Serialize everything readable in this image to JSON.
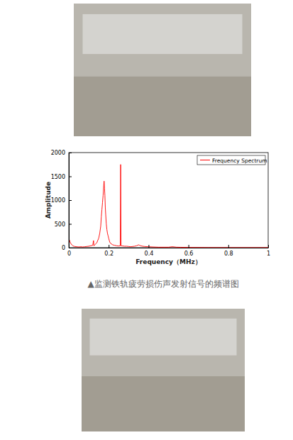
{
  "chart_data": {
    "type": "line",
    "xlabel": "Frequency（MHz）",
    "ylabel": "Amplitude",
    "x": [
      0,
      0.003,
      0.006,
      0.01,
      0.015,
      0.02,
      0.025,
      0.03,
      0.04,
      0.05,
      0.06,
      0.07,
      0.08,
      0.09,
      0.1,
      0.11,
      0.12,
      0.124,
      0.126,
      0.13,
      0.14,
      0.145,
      0.15,
      0.155,
      0.16,
      0.163,
      0.166,
      0.169,
      0.172,
      0.175,
      0.177,
      0.179,
      0.181,
      0.183,
      0.185,
      0.188,
      0.191,
      0.194,
      0.197,
      0.2,
      0.205,
      0.21,
      0.22,
      0.23,
      0.24,
      0.25,
      0.258,
      0.26,
      0.262,
      0.27,
      0.28,
      0.29,
      0.3,
      0.31,
      0.32,
      0.33,
      0.34,
      0.345,
      0.35,
      0.355,
      0.36,
      0.37,
      0.38,
      0.4,
      0.42,
      0.45,
      0.48,
      0.5,
      0.52,
      0.53,
      0.54,
      0.56,
      0.6,
      0.7,
      0.8,
      0.9,
      1
    ],
    "series": [
      {
        "name": "Frequency Spectrum",
        "color": "#ff0000",
        "values": [
          20,
          160,
          120,
          90,
          60,
          40,
          30,
          25,
          20,
          15,
          20,
          15,
          20,
          25,
          30,
          40,
          50,
          150,
          40,
          60,
          100,
          150,
          200,
          300,
          450,
          650,
          800,
          950,
          1100,
          1300,
          1400,
          1250,
          1100,
          850,
          700,
          500,
          380,
          300,
          250,
          200,
          120,
          90,
          60,
          50,
          40,
          35,
          40,
          1750,
          40,
          35,
          30,
          30,
          25,
          20,
          25,
          30,
          40,
          50,
          60,
          50,
          40,
          30,
          25,
          20,
          15,
          10,
          10,
          10,
          20,
          15,
          10,
          8,
          5,
          3,
          2,
          2,
          2
        ]
      }
    ],
    "xlim": [
      0,
      1
    ],
    "xticks": [
      0,
      0.2,
      0.4,
      0.6,
      0.8,
      1
    ],
    "ylim": [
      0,
      2000
    ],
    "yticks": [
      0,
      500,
      1000,
      1500,
      2000
    ],
    "grid": false,
    "legend": "upper-right"
  },
  "caption": "▲监测铁轨疲劳损伤声发射信号的频谱图"
}
